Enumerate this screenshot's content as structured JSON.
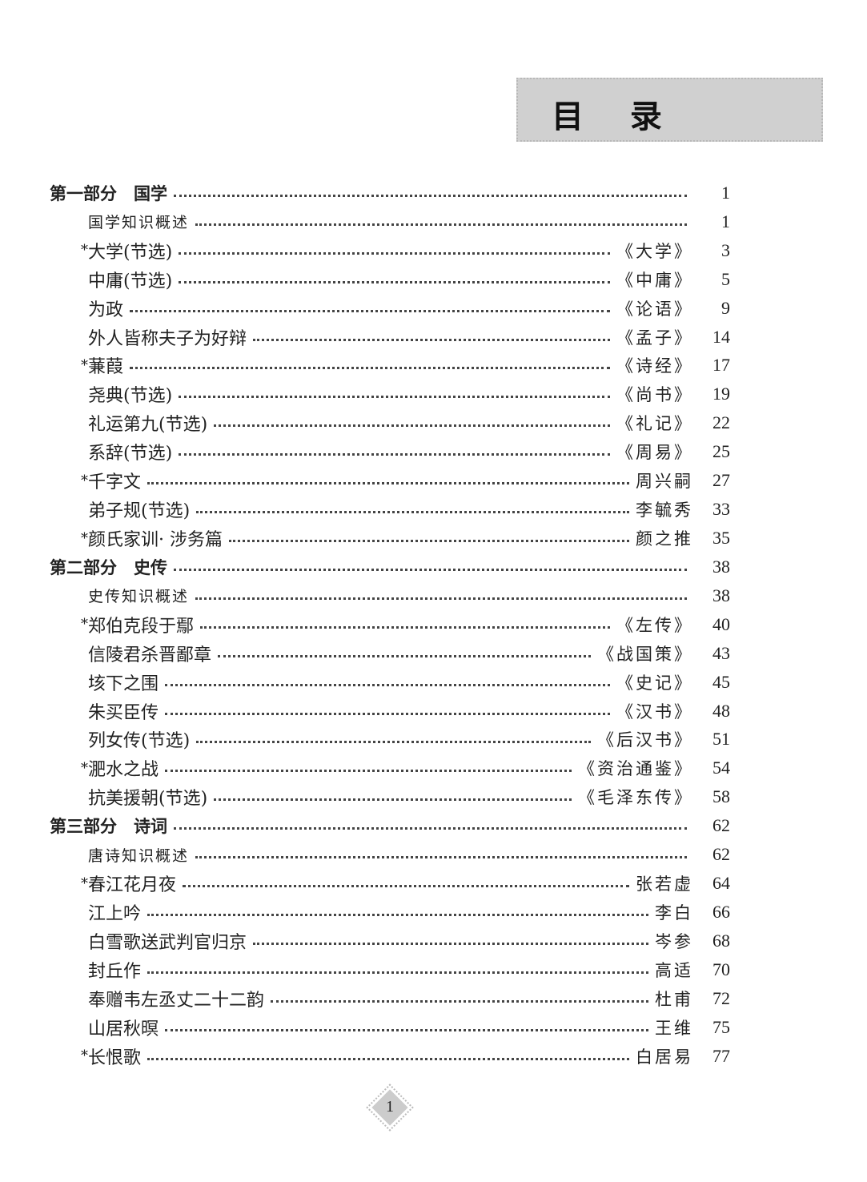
{
  "title": "目 录",
  "page_number": "1",
  "entries": [
    {
      "type": "part",
      "title": "第一部分　国学",
      "author": "",
      "page": "1"
    },
    {
      "type": "overview",
      "title": "国学知识概述",
      "author": "",
      "page": "1"
    },
    {
      "type": "item",
      "star": "*",
      "title": "大学(节选)",
      "author": "《大学》",
      "page": "3"
    },
    {
      "type": "item",
      "star": "",
      "title": "中庸(节选)",
      "author": "《中庸》",
      "page": "5"
    },
    {
      "type": "item",
      "star": "",
      "title": "为政",
      "author": "《论语》",
      "page": "9"
    },
    {
      "type": "item",
      "star": "",
      "title": "外人皆称夫子为好辩",
      "author": "《孟子》",
      "page": "14"
    },
    {
      "type": "item",
      "star": "*",
      "title": "蒹葭",
      "author": "《诗经》",
      "page": "17"
    },
    {
      "type": "item",
      "star": "",
      "title": "尧典(节选)",
      "author": "《尚书》",
      "page": "19"
    },
    {
      "type": "item",
      "star": "",
      "title": "礼运第九(节选)",
      "author": "《礼记》",
      "page": "22"
    },
    {
      "type": "item",
      "star": "",
      "title": "系辞(节选)",
      "author": "《周易》",
      "page": "25"
    },
    {
      "type": "item",
      "star": "*",
      "title": "千字文",
      "author": "周兴嗣",
      "page": "27"
    },
    {
      "type": "item",
      "star": "",
      "title": "弟子规(节选)",
      "author": "李毓秀",
      "page": "33"
    },
    {
      "type": "item",
      "star": "*",
      "title": "颜氏家训· 涉务篇",
      "author": "颜之推",
      "page": "35"
    },
    {
      "type": "part",
      "title": "第二部分　史传",
      "author": "",
      "page": "38"
    },
    {
      "type": "overview",
      "title": "史传知识概述",
      "author": "",
      "page": "38"
    },
    {
      "type": "item",
      "star": "*",
      "title": "郑伯克段于鄢",
      "author": "《左传》",
      "page": "40"
    },
    {
      "type": "item",
      "star": "",
      "title": "信陵君杀晋鄙章",
      "author": "《战国策》",
      "page": "43"
    },
    {
      "type": "item",
      "star": "",
      "title": "垓下之围",
      "author": "《史记》",
      "page": "45"
    },
    {
      "type": "item",
      "star": "",
      "title": "朱买臣传",
      "author": "《汉书》",
      "page": "48"
    },
    {
      "type": "item",
      "star": "",
      "title": "列女传(节选)",
      "author": "《后汉书》",
      "page": "51"
    },
    {
      "type": "item",
      "star": "*",
      "title": "淝水之战",
      "author": "《资治通鉴》",
      "page": "54"
    },
    {
      "type": "item",
      "star": "",
      "title": "抗美援朝(节选)",
      "author": "《毛泽东传》",
      "page": "58"
    },
    {
      "type": "part",
      "title": "第三部分　诗词",
      "author": "",
      "page": "62"
    },
    {
      "type": "overview",
      "title": "唐诗知识概述",
      "author": "",
      "page": "62"
    },
    {
      "type": "item",
      "star": "*",
      "title": "春江花月夜",
      "author": "张若虚",
      "page": "64"
    },
    {
      "type": "item",
      "star": "",
      "title": "江上吟",
      "author": "李白",
      "page": "66"
    },
    {
      "type": "item",
      "star": "",
      "title": "白雪歌送武判官归京",
      "author": "岑参",
      "page": "68"
    },
    {
      "type": "item",
      "star": "",
      "title": "封丘作",
      "author": "高适",
      "page": "70"
    },
    {
      "type": "item",
      "star": "",
      "title": "奉赠韦左丞丈二十二韵",
      "author": "杜甫",
      "page": "72"
    },
    {
      "type": "item",
      "star": "",
      "title": "山居秋暝",
      "author": "王维",
      "page": "75"
    },
    {
      "type": "item",
      "star": "*",
      "title": "长恨歌",
      "author": "白居易",
      "page": "77"
    }
  ]
}
